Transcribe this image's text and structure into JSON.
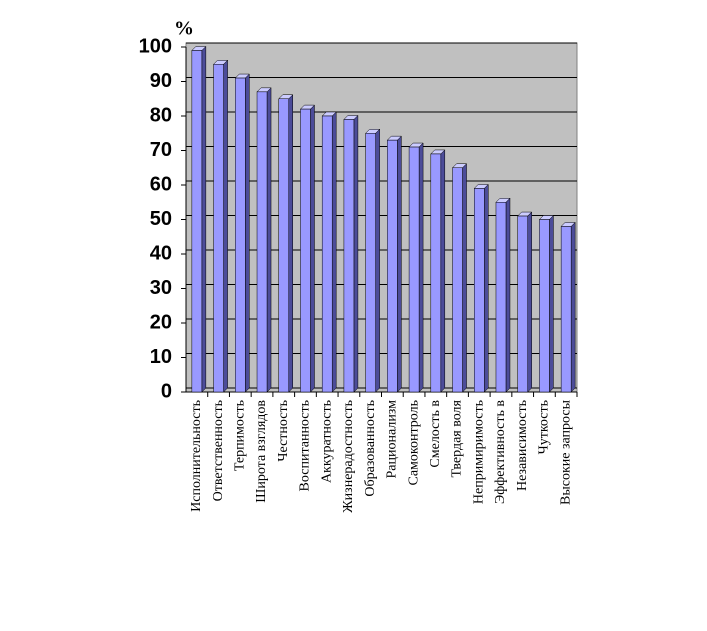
{
  "chart_data": {
    "type": "bar",
    "unit": "%",
    "categories": [
      "Исполнительность",
      "Ответственность",
      "Терпимость",
      "Широта взглядов",
      "Честность",
      "Воспитанность",
      "Аккуратность",
      "Жизнерадостность",
      "Образованность",
      "Рационализм",
      "Самоконтроль",
      "Смелость в",
      "Твердая воля",
      "Непримиримость",
      "Эффективность в",
      "Независимость",
      "Чуткость",
      "Высокие запросы"
    ],
    "values": [
      99,
      95,
      91,
      87,
      85,
      82,
      80,
      79,
      75,
      73,
      71,
      69,
      65,
      59,
      55,
      51,
      50,
      48
    ],
    "color": "#9999ff",
    "ylim": [
      0,
      100
    ],
    "yticks": [
      0,
      10,
      20,
      30,
      40,
      50,
      60,
      70,
      80,
      90,
      100
    ],
    "grid": true
  }
}
